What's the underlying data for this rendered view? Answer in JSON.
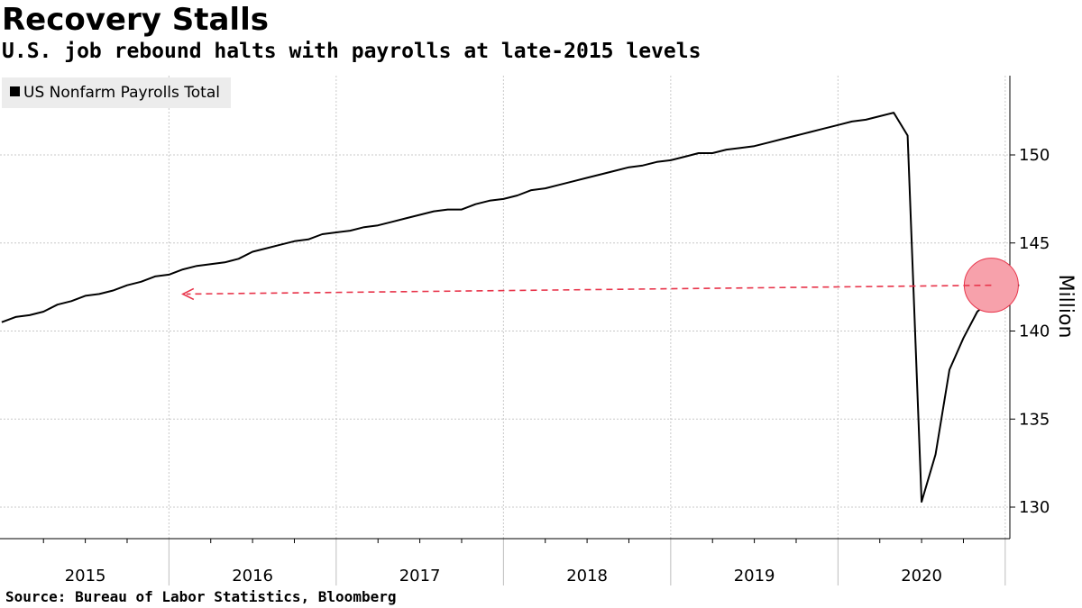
{
  "chart_data": {
    "type": "line",
    "title": "Recovery Stalls",
    "subtitle": "U.S. job rebound halts with payrolls at late-2015 levels",
    "source": "Source: Bureau of Labor Statistics, Bloomberg",
    "legend": [
      "US Nonfarm Payrolls Total"
    ],
    "legend_position": "top-left",
    "ylabel": "Million",
    "ylim": [
      128,
      154.5
    ],
    "yticks": [
      130,
      135,
      140,
      145,
      150
    ],
    "x_categories": [
      "2015",
      "2016",
      "2017",
      "2018",
      "2019",
      "2020"
    ],
    "grid": true,
    "series": [
      {
        "name": "US Nonfarm Payrolls Total",
        "x_start": "2015-01",
        "values": [
          140.5,
          140.8,
          140.9,
          141.1,
          141.5,
          141.7,
          142.0,
          142.1,
          142.3,
          142.6,
          142.8,
          143.1,
          143.2,
          143.5,
          143.7,
          143.8,
          143.9,
          144.1,
          144.5,
          144.7,
          144.9,
          145.1,
          145.2,
          145.5,
          145.6,
          145.7,
          145.9,
          146.0,
          146.2,
          146.4,
          146.6,
          146.8,
          146.9,
          146.9,
          147.2,
          147.4,
          147.5,
          147.7,
          148.0,
          148.1,
          148.3,
          148.5,
          148.7,
          148.9,
          149.1,
          149.3,
          149.4,
          149.6,
          149.7,
          149.9,
          150.1,
          150.1,
          150.3,
          150.4,
          150.5,
          150.7,
          150.9,
          151.1,
          151.3,
          151.5,
          151.7,
          151.9,
          152.0,
          152.2,
          152.4,
          151.1,
          130.3,
          133.0,
          137.8,
          139.6,
          141.1,
          141.8,
          142.6,
          142.6
        ]
      }
    ],
    "annotation": {
      "label": "Arrow from latest reading back to late-2015 level",
      "from_value": 142.6,
      "to_value": 142.1,
      "from_date": "2020-12",
      "to_date": "2016-02",
      "color": "#e8344a"
    }
  }
}
